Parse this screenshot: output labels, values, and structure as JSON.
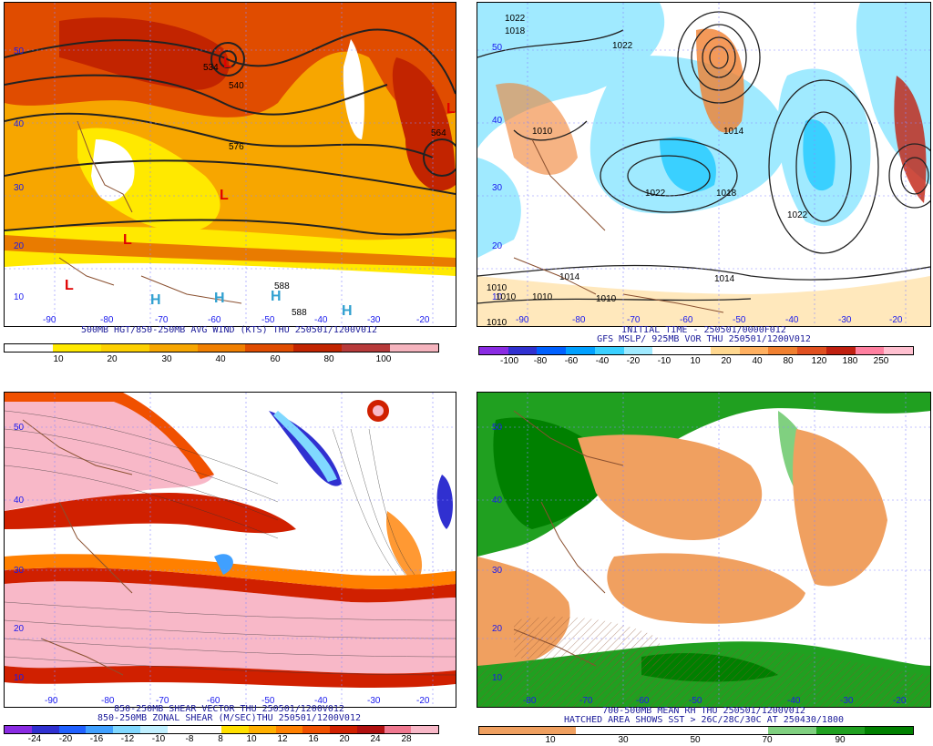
{
  "panels": [
    {
      "id": "p1",
      "caption_lines": [
        "500MB HGT/850-250MB AVG WIND (KTS) THU 250501/1200V012"
      ],
      "colorbar": {
        "colors": [
          "#ffffff",
          "#ffe900",
          "#fdd000",
          "#f7a600",
          "#f07f00",
          "#e04c00",
          "#c22400",
          "#b73a3a",
          "#f5b4be"
        ],
        "labels": [
          "10",
          "20",
          "30",
          "40",
          "60",
          "80",
          "100"
        ]
      },
      "lat_labels": [
        "50",
        "40",
        "30",
        "20",
        "10"
      ],
      "lon_labels": [
        "-90",
        "-80",
        "-70",
        "-60",
        "-50",
        "-40",
        "-30",
        "-20"
      ],
      "contour_labels": [
        "534",
        "540",
        "564",
        "576",
        "588",
        "588"
      ],
      "low_symbol": "L",
      "high_symbol": "H"
    },
    {
      "id": "p2",
      "caption_lines": [
        "INITIAL TIME - 250501/0000F012",
        "GFS MSLP/ 925MB VOR THU 250501/1200V012"
      ],
      "colorbar": {
        "colors": [
          "#8a2be2",
          "#3030d0",
          "#0060ff",
          "#00a0ff",
          "#3ad0ff",
          "#a0eaff",
          "#ffffff",
          "#ffffff",
          "#ffd890",
          "#ffb060",
          "#f08030",
          "#e05020",
          "#c02010",
          "#ff80a0",
          "#ffc0d0"
        ],
        "labels": [
          "-100",
          "-80",
          "-60",
          "-40",
          "-20",
          "-10",
          "10",
          "20",
          "40",
          "80",
          "120",
          "180",
          "250"
        ]
      },
      "lat_labels": [
        "50",
        "40",
        "30",
        "20",
        "10"
      ],
      "lon_labels": [
        "-90",
        "-80",
        "-70",
        "-60",
        "-50",
        "-40",
        "-30",
        "-20"
      ],
      "contour_labels": [
        "1022",
        "1018",
        "1022",
        "1010",
        "1014",
        "1022",
        "1018",
        "1022",
        "1014",
        "1010",
        "1010",
        "1010",
        "1014",
        "1010",
        "1010"
      ]
    },
    {
      "id": "p3",
      "caption_lines": [
        "850-250MB SHEAR VECTOR THU 250501/1200V012",
        "850-250MB ZONAL SHEAR (M/SEC)THU 250501/1200V012"
      ],
      "colorbar": {
        "colors": [
          "#8a2be2",
          "#3030d0",
          "#2060ff",
          "#40a0ff",
          "#80d8ff",
          "#c0f0ff",
          "#ffffff",
          "#ffffff",
          "#ffe000",
          "#ffb000",
          "#ff8000",
          "#f05000",
          "#d02000",
          "#b01010",
          "#f07890",
          "#f8b8c8"
        ],
        "labels": [
          "-24",
          "-20",
          "-16",
          "-12",
          "-10",
          "-8",
          "8",
          "10",
          "12",
          "16",
          "20",
          "24",
          "28"
        ]
      },
      "lat_labels": [
        "50",
        "40",
        "30",
        "20",
        "10"
      ],
      "lon_labels": [
        "-90",
        "-80",
        "-70",
        "-60",
        "-50",
        "-40",
        "-30",
        "-20"
      ]
    },
    {
      "id": "p4",
      "caption_lines": [
        "700-500MB MEAN RH THU 250501/1200V012",
        "HATCHED AREA SHOWS SST > 26C/28C/30C AT 250430/1800"
      ],
      "colorbar": {
        "colors": [
          "#f0a060",
          "#f0a060",
          "#ffffff",
          "#ffffff",
          "#ffffff",
          "#ffffff",
          "#80d080",
          "#20a020",
          "#008000"
        ],
        "labels": [
          "10",
          "30",
          "50",
          "70",
          "90"
        ]
      },
      "lat_labels": [
        "50",
        "40",
        "30",
        "20",
        "10"
      ],
      "lon_labels": [
        "-80",
        "-70",
        "-60",
        "-50",
        "-40",
        "-30",
        "-20"
      ]
    }
  ]
}
